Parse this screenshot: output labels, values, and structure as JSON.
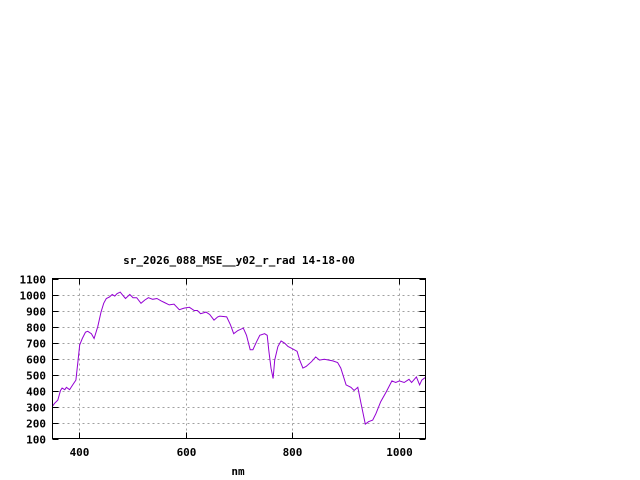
{
  "chart_data": {
    "type": "line",
    "title": "sr_2026_088_MSE__y02_r_rad 14-18-00",
    "xlabel": "nm",
    "ylabel": "",
    "xlim": [
      350,
      1050
    ],
    "ylim": [
      100,
      1100
    ],
    "xticks": [
      400,
      600,
      800,
      1000
    ],
    "yticks": [
      100,
      200,
      300,
      400,
      500,
      600,
      700,
      800,
      900,
      1000,
      1100
    ],
    "grid": true,
    "line_color": "#9400d3",
    "series": [
      {
        "x": [
          350,
          354,
          360,
          365,
          368,
          373,
          376,
          382,
          388,
          394,
          398,
          401,
          406,
          412,
          416,
          423,
          428,
          435,
          441,
          446,
          451,
          457,
          462,
          467,
          471,
          477,
          482,
          487,
          495,
          501,
          508,
          516,
          523,
          530,
          538,
          546,
          554,
          560,
          569,
          578,
          588,
          597,
          607,
          616,
          622,
          628,
          638,
          645,
          653,
          660,
          664,
          677,
          684,
          690,
          698,
          708,
          714,
          721,
          726,
          733,
          739,
          748,
          753,
          756,
          760,
          764,
          767,
          773,
          779,
          786,
          792,
          801,
          809,
          814,
          820,
          826,
          836,
          844,
          851,
          860,
          876,
          885,
          891,
          901,
          910,
          916,
          923,
          929,
          937,
          943,
          951,
          957,
          966,
          976,
          987,
          994,
          1001,
          1010,
          1019,
          1024,
          1033,
          1039,
          1043,
          1049
        ],
        "y": [
          302,
          320,
          340,
          400,
          415,
          405,
          420,
          405,
          435,
          465,
          590,
          685,
          725,
          765,
          770,
          755,
          725,
          800,
          890,
          945,
          975,
          985,
          1000,
          990,
          1005,
          1015,
          995,
          975,
          1000,
          980,
          980,
          945,
          965,
          980,
          970,
          975,
          960,
          950,
          935,
          940,
          905,
          915,
          920,
          900,
          900,
          880,
          890,
          875,
          840,
          860,
          865,
          860,
          810,
          755,
          775,
          790,
          745,
          655,
          655,
          705,
          745,
          755,
          745,
          650,
          540,
          475,
          590,
          675,
          710,
          695,
          675,
          660,
          645,
          590,
          540,
          550,
          580,
          610,
          590,
          595,
          585,
          575,
          540,
          435,
          420,
          400,
          420,
          320,
          190,
          205,
          215,
          255,
          330,
          390,
          460,
          450,
          460,
          450,
          470,
          450,
          485,
          435,
          465,
          480
        ]
      }
    ]
  }
}
